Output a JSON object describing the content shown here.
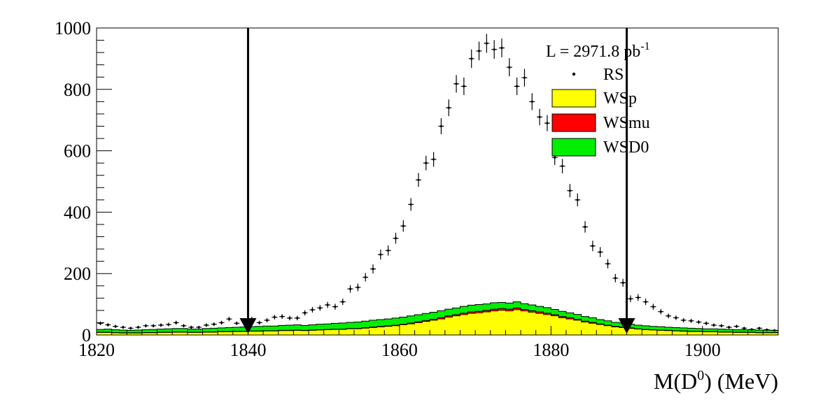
{
  "chart_data": {
    "type": "histogram",
    "xlabel": "M(D",
    "xlabel_sup": "0",
    "xlabel_tail": ") (MeV)",
    "ylabel": "",
    "xlim": [
      1820,
      1910
    ],
    "ylim": [
      0,
      1000
    ],
    "x_ticks": [
      1820,
      1840,
      1860,
      1880,
      1900
    ],
    "y_ticks": [
      0,
      200,
      400,
      600,
      800,
      1000
    ],
    "grid": false,
    "legend_position": "top-right",
    "annotation": {
      "text": "L = 2971.8 pb",
      "sup": "-1"
    },
    "cut_lines": [
      1840,
      1890
    ],
    "bins": {
      "start": 1820,
      "width": 1
    },
    "series": [
      {
        "name": "RS",
        "style": "points-with-errors",
        "color": "#000000",
        "values": [
          38,
          33,
          28,
          25,
          22,
          25,
          30,
          30,
          32,
          34,
          40,
          30,
          25,
          25,
          32,
          35,
          40,
          52,
          38,
          45,
          52,
          40,
          48,
          58,
          60,
          55,
          55,
          72,
          82,
          88,
          98,
          92,
          108,
          150,
          155,
          188,
          215,
          262,
          275,
          315,
          355,
          425,
          505,
          560,
          572,
          680,
          740,
          818,
          810,
          900,
          925,
          950,
          930,
          935,
          872,
          810,
          838,
          760,
          710,
          690,
          578,
          550,
          470,
          440,
          352,
          290,
          270,
          232,
          185,
          170,
          118,
          122,
          108,
          92,
          76,
          62,
          56,
          48,
          46,
          42,
          38,
          32,
          30,
          25,
          28,
          22,
          18,
          22,
          17,
          15
        ]
      },
      {
        "name": "WSp",
        "style": "filled-histogram",
        "color": "#ffff00",
        "values": [
          8,
          8,
          7,
          6,
          6,
          6,
          7,
          7,
          8,
          8,
          9,
          9,
          8,
          8,
          9,
          9,
          10,
          10,
          11,
          11,
          12,
          12,
          13,
          13,
          14,
          14,
          15,
          14,
          15,
          16,
          17,
          18,
          18,
          20,
          20,
          22,
          24,
          26,
          28,
          30,
          33,
          36,
          40,
          44,
          48,
          52,
          58,
          62,
          66,
          70,
          72,
          75,
          78,
          80,
          78,
          82,
          78,
          74,
          70,
          66,
          62,
          56,
          52,
          48,
          42,
          38,
          34,
          30,
          26,
          24,
          21,
          19,
          17,
          16,
          15,
          14,
          13,
          12,
          11,
          11,
          10,
          10,
          9,
          9,
          8,
          8,
          8,
          7,
          7,
          7
        ]
      },
      {
        "name": "WSmu",
        "style": "filled-histogram",
        "color": "#ff0000",
        "values": [
          1,
          1,
          1,
          1,
          1,
          1,
          1,
          1,
          1,
          1,
          1,
          1,
          1,
          1,
          1,
          1,
          1,
          1,
          1,
          1,
          1,
          1,
          1,
          1,
          1,
          1,
          1,
          1,
          1,
          1,
          1,
          1,
          1,
          1,
          1,
          2,
          2,
          2,
          2,
          2,
          2,
          3,
          3,
          3,
          3,
          4,
          4,
          4,
          5,
          5,
          5,
          5,
          6,
          6,
          6,
          6,
          5,
          5,
          5,
          5,
          4,
          4,
          4,
          3,
          3,
          3,
          2,
          2,
          2,
          2,
          2,
          1,
          1,
          1,
          1,
          1,
          1,
          1,
          1,
          1,
          1,
          1,
          1,
          1,
          1,
          1,
          1,
          1,
          1,
          1
        ]
      },
      {
        "name": "WSD0",
        "style": "filled-histogram",
        "color": "#00ee00",
        "values": [
          9,
          10,
          9,
          9,
          8,
          9,
          9,
          10,
          10,
          11,
          11,
          11,
          10,
          10,
          11,
          12,
          12,
          13,
          13,
          14,
          14,
          15,
          15,
          15,
          16,
          17,
          17,
          16,
          17,
          18,
          18,
          19,
          20,
          20,
          21,
          21,
          22,
          22,
          22,
          23,
          23,
          23,
          23,
          23,
          23,
          23,
          22,
          22,
          22,
          22,
          22,
          21,
          21,
          20,
          20,
          20,
          19,
          19,
          18,
          18,
          17,
          17,
          16,
          16,
          15,
          15,
          14,
          14,
          13,
          13,
          12,
          12,
          12,
          11,
          11,
          10,
          10,
          10,
          10,
          9,
          9,
          9,
          9,
          8,
          8,
          8,
          8,
          8,
          8,
          7
        ]
      }
    ]
  }
}
